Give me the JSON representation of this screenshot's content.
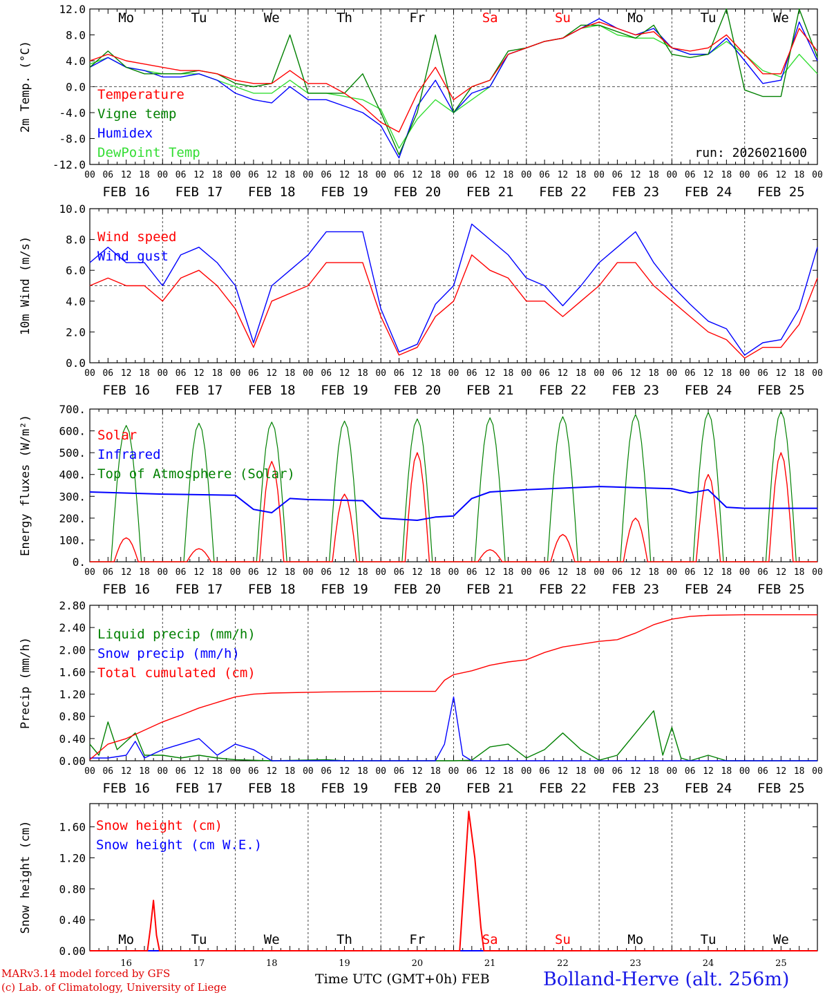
{
  "colors": {
    "red": "#ff0000",
    "blue": "#0000ff",
    "green": "#008000",
    "lightgreen": "#33dd33",
    "grid": "#555555"
  },
  "dates": [
    "FEB 16",
    "FEB 17",
    "FEB 18",
    "FEB 19",
    "FEB 20",
    "FEB 21",
    "FEB 22",
    "FEB 23",
    "FEB 24",
    "FEB 25"
  ],
  "hour_ticks": [
    "00",
    "06",
    "12",
    "18"
  ],
  "weekdays": [
    {
      "label": "Mo",
      "weekend": false
    },
    {
      "label": "Tu",
      "weekend": false
    },
    {
      "label": "We",
      "weekend": false
    },
    {
      "label": "Th",
      "weekend": false
    },
    {
      "label": "Fr",
      "weekend": false
    },
    {
      "label": "Sa",
      "weekend": true
    },
    {
      "label": "Su",
      "weekend": true
    },
    {
      "label": "Mo",
      "weekend": false
    },
    {
      "label": "Tu",
      "weekend": false
    },
    {
      "label": "We",
      "weekend": false
    }
  ],
  "day_numbers": [
    "16",
    "17",
    "18",
    "19",
    "20",
    "21",
    "22",
    "23",
    "24",
    "25"
  ],
  "chart_data": [
    {
      "type": "line",
      "ylabel": "2m Temp. (°C)",
      "ylim": [
        -12,
        12
      ],
      "ytick_values": [
        -12,
        -8,
        -4,
        0,
        4,
        8,
        12
      ],
      "ytick_labels": [
        "-12.0",
        "-8.0",
        "-4.0",
        "0.0",
        "4.0",
        "8.0",
        "12.0"
      ],
      "ref_line": 0,
      "show_weekdays": true,
      "note": "run: 2026021600",
      "x": [
        0,
        6,
        12,
        18,
        24,
        30,
        36,
        42,
        48,
        54,
        60,
        66,
        72,
        78,
        84,
        90,
        96,
        102,
        108,
        114,
        120,
        126,
        132,
        138,
        144,
        150,
        156,
        162,
        168,
        174,
        180,
        186,
        192,
        198,
        204,
        210,
        216,
        222,
        228,
        234,
        240
      ],
      "series": [
        {
          "name": "Temperature",
          "color": "red",
          "values": [
            4,
            5,
            4,
            3.5,
            3,
            2.5,
            2.5,
            2,
            1,
            0.5,
            0.5,
            2.5,
            0.5,
            0.5,
            -1,
            -3,
            -5.5,
            -7,
            -1,
            3,
            -2,
            0,
            1,
            5,
            6,
            7,
            7.5,
            9,
            10,
            9,
            8,
            8.5,
            6,
            5.5,
            6,
            8,
            5,
            2,
            2,
            9,
            5.5
          ]
        },
        {
          "name": "Vigne temp",
          "color": "green",
          "values": [
            3,
            5.5,
            3,
            2,
            2,
            2,
            2.5,
            2,
            0.5,
            0,
            0.5,
            8,
            -1,
            -1,
            -1,
            2,
            -4,
            -10.5,
            -4,
            8,
            -4,
            0,
            1,
            5.5,
            6,
            7,
            7.5,
            9.5,
            9.5,
            8.5,
            7.5,
            9.5,
            5,
            4.5,
            5,
            12,
            -0.5,
            -1.5,
            -1.5,
            12,
            4.5
          ]
        },
        {
          "name": "Humidex",
          "color": "blue",
          "values": [
            3,
            4.5,
            3,
            2.5,
            1.5,
            1.5,
            2,
            1,
            -1,
            -2,
            -2.5,
            0,
            -2,
            -2,
            -3,
            -4,
            -6,
            -11,
            -3,
            1,
            -4,
            -1,
            0,
            5,
            6,
            7,
            7.5,
            9,
            10.5,
            9,
            8,
            9,
            6,
            5,
            5,
            7.5,
            4,
            0.5,
            1,
            10,
            4
          ]
        },
        {
          "name": "DewPoint Temp",
          "color": "lightgreen",
          "values": [
            3.5,
            4.5,
            3,
            2.5,
            2,
            2,
            2,
            1,
            0,
            -1,
            -1,
            1,
            -1,
            -1,
            -1.5,
            -2,
            -3.5,
            -9.5,
            -5,
            -2,
            -4,
            -2,
            0,
            5,
            6,
            7,
            7.5,
            9,
            9.5,
            8,
            7.5,
            7.5,
            6,
            5,
            5,
            7,
            5,
            2.5,
            1.5,
            5,
            2
          ]
        }
      ]
    },
    {
      "type": "line",
      "ylabel": "10m Wind (m/s)",
      "ylim": [
        0,
        10
      ],
      "ytick_values": [
        0,
        2,
        4,
        6,
        8,
        10
      ],
      "ytick_labels": [
        "0.0",
        "2.0",
        "4.0",
        "6.0",
        "8.0",
        "10.0"
      ],
      "ref_line": 5,
      "show_weekdays": false,
      "x": [
        0,
        6,
        12,
        18,
        24,
        30,
        36,
        42,
        48,
        54,
        60,
        66,
        72,
        78,
        84,
        90,
        96,
        102,
        108,
        114,
        120,
        126,
        132,
        138,
        144,
        150,
        156,
        162,
        168,
        174,
        180,
        186,
        192,
        198,
        204,
        210,
        216,
        222,
        228,
        234,
        240
      ],
      "series": [
        {
          "name": "Wind speed",
          "color": "red",
          "values": [
            5,
            5.5,
            5,
            5,
            4,
            5.5,
            6,
            5,
            3.5,
            1,
            4,
            4.5,
            5,
            6.5,
            6.5,
            6.5,
            3,
            0.5,
            1,
            3,
            4,
            7,
            6,
            5.5,
            4,
            4,
            3,
            4,
            5,
            6.5,
            6.5,
            5,
            4,
            3,
            2,
            1.5,
            0.3,
            1,
            1,
            2.5,
            5.5
          ]
        },
        {
          "name": "Wind gust",
          "color": "blue",
          "values": [
            6.5,
            7.5,
            6.5,
            6.5,
            5,
            7,
            7.5,
            6.5,
            5,
            1.3,
            5,
            6,
            7,
            8.5,
            8.5,
            8.5,
            3.5,
            0.7,
            1.2,
            3.8,
            5,
            9,
            8,
            7,
            5.5,
            5,
            3.7,
            5,
            6.5,
            7.5,
            8.5,
            6.5,
            5,
            3.8,
            2.7,
            2.2,
            0.5,
            1.3,
            1.5,
            3.5,
            7.5
          ]
        }
      ]
    },
    {
      "type": "line",
      "ylabel": "Energy fluxes (W/m²)",
      "ylim": [
        0,
        700
      ],
      "ytick_values": [
        0,
        100,
        200,
        300,
        400,
        500,
        600,
        700
      ],
      "ytick_labels": [
        "0.",
        "100.",
        "200.",
        "300.",
        "400.",
        "500.",
        "600.",
        "700."
      ],
      "show_weekdays": false,
      "toa_peaks": [
        625,
        635,
        640,
        645,
        655,
        660,
        665,
        675,
        685,
        690
      ],
      "solar_peaks": [
        110,
        60,
        460,
        310,
        500,
        55,
        125,
        200,
        400,
        500
      ],
      "infrared": {
        "x": [
          0,
          24,
          48,
          54,
          60,
          66,
          72,
          90,
          96,
          108,
          114,
          120,
          126,
          132,
          144,
          168,
          180,
          192,
          198,
          204,
          210,
          216,
          240
        ],
        "values": [
          320,
          310,
          305,
          240,
          225,
          290,
          285,
          280,
          200,
          190,
          205,
          210,
          290,
          320,
          330,
          345,
          340,
          335,
          315,
          330,
          250,
          245,
          245
        ]
      },
      "series_names": [
        "Solar",
        "Infrared",
        "Top of Atmosphere (Solar)"
      ],
      "series_colors": [
        "red",
        "blue",
        "green"
      ]
    },
    {
      "type": "line",
      "ylabel": "Precip (mm/h)",
      "ylim": [
        0,
        2.8
      ],
      "ytick_values": [
        0,
        0.4,
        0.8,
        1.2,
        1.6,
        2.0,
        2.4,
        2.8
      ],
      "ytick_labels": [
        "0.00",
        "0.40",
        "0.80",
        "1.20",
        "1.60",
        "2.00",
        "2.40",
        "2.80"
      ],
      "show_weekdays": false,
      "series": [
        {
          "name": "Liquid precip (mm/h)",
          "color": "green",
          "x": [
            0,
            3,
            6,
            9,
            12,
            15,
            18,
            24,
            30,
            36,
            42,
            48,
            54,
            60,
            78,
            84,
            108,
            114,
            120,
            126,
            132,
            138,
            144,
            150,
            156,
            162,
            168,
            174,
            180,
            186,
            189,
            192,
            195,
            198,
            204,
            210,
            216,
            222,
            228,
            234,
            240
          ],
          "values": [
            0.3,
            0.1,
            0.7,
            0.2,
            0.35,
            0.5,
            0.1,
            0.1,
            0.05,
            0.1,
            0.05,
            0.02,
            0.01,
            0,
            0.02,
            0,
            0,
            0,
            0,
            0.01,
            0.25,
            0.3,
            0.05,
            0.2,
            0.5,
            0.2,
            0.01,
            0.1,
            0.5,
            0.9,
            0.1,
            0.6,
            0.05,
            0,
            0.1,
            0,
            0,
            0,
            0,
            0,
            0
          ]
        },
        {
          "name": "Snow precip (mm/h)",
          "color": "blue",
          "x": [
            0,
            6,
            12,
            15,
            18,
            24,
            30,
            36,
            42,
            48,
            54,
            60,
            66,
            72,
            114,
            117,
            120,
            123,
            126,
            132,
            240
          ],
          "values": [
            0.05,
            0.05,
            0.1,
            0.35,
            0.05,
            0.2,
            0.3,
            0.4,
            0.1,
            0.3,
            0.2,
            0,
            0,
            0,
            0,
            0.3,
            1.15,
            0.1,
            0,
            0,
            0
          ]
        },
        {
          "name": "Total cumulated (cm)",
          "color": "red",
          "x": [
            0,
            6,
            12,
            18,
            24,
            30,
            36,
            42,
            48,
            54,
            60,
            78,
            96,
            108,
            114,
            117,
            120,
            126,
            132,
            138,
            144,
            150,
            156,
            162,
            168,
            174,
            180,
            186,
            192,
            198,
            204,
            216,
            240
          ],
          "values": [
            0.02,
            0.3,
            0.4,
            0.55,
            0.7,
            0.82,
            0.95,
            1.05,
            1.15,
            1.2,
            1.22,
            1.24,
            1.25,
            1.25,
            1.25,
            1.45,
            1.55,
            1.62,
            1.72,
            1.78,
            1.82,
            1.95,
            2.05,
            2.1,
            2.15,
            2.18,
            2.3,
            2.45,
            2.55,
            2.6,
            2.62,
            2.63,
            2.63
          ]
        }
      ]
    },
    {
      "type": "line",
      "ylabel": "Snow height (cm)",
      "ylim": [
        0,
        1.9
      ],
      "ytick_values": [
        0,
        0.4,
        0.8,
        1.2,
        1.6
      ],
      "ytick_labels": [
        "0.00",
        "0.40",
        "0.80",
        "1.20",
        "1.60"
      ],
      "show_weekdays": true,
      "weekdays_bottom": true,
      "series": [
        {
          "name": "Snow height (cm)",
          "color": "red",
          "x": [
            0,
            19,
            20,
            21,
            22,
            23,
            122,
            123,
            125,
            127,
            129,
            130,
            240
          ],
          "values": [
            0,
            0,
            0.3,
            0.65,
            0.2,
            0,
            0,
            0.6,
            1.8,
            1.2,
            0.3,
            0,
            0
          ]
        },
        {
          "name": "Snow height (cm W.E.)",
          "color": "blue",
          "x": [
            0,
            240
          ],
          "values": [
            0,
            0
          ]
        }
      ]
    }
  ],
  "footer": {
    "model_line": "MARv3.14 model forced by GFS",
    "copyright_line": "(c) Lab. of Climatology, University of Liege",
    "axis_title": "Time UTC (GMT+0h) FEB",
    "station": "Bolland-Herve (alt. 256m)"
  }
}
